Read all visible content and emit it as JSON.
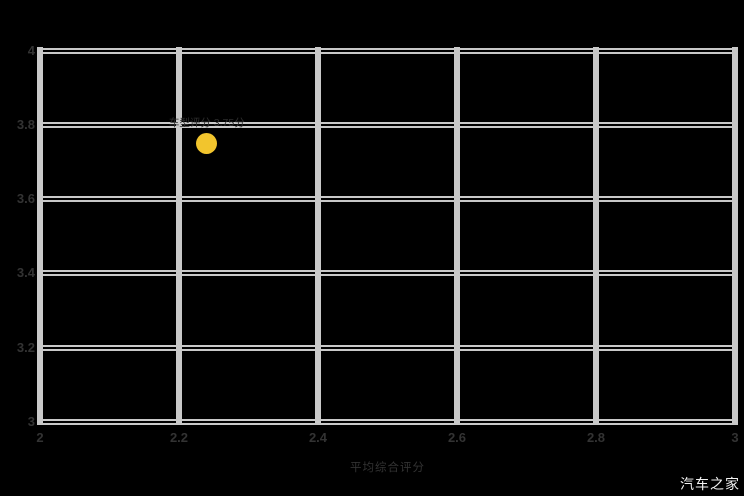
{
  "watermark": "汽车之家",
  "colors": {
    "background": "#000000",
    "grid": "#c9c9c9",
    "tick_text": "#333333",
    "point": "#f2c52d",
    "point_label_text": "#2e2e2e",
    "watermark_text": "#f2f2f2"
  },
  "chart_data": {
    "type": "scatter",
    "title": "",
    "xlabel": "平均综合评分",
    "ylabel": "",
    "xlim": [
      2,
      3
    ],
    "ylim": [
      3,
      4
    ],
    "grid": "on",
    "legend": "none",
    "x_tick_labels": [
      "2",
      "2.2",
      "2.4",
      "2.6",
      "2.8",
      "3"
    ],
    "x_tick_values": [
      2,
      2.2,
      2.4,
      2.6,
      2.8,
      3
    ],
    "y_tick_labels": [
      "4",
      "3.8",
      "3.6",
      "3.4",
      "3.2",
      "3"
    ],
    "y_tick_values": [
      4,
      3.8,
      3.6,
      3.4,
      3.2,
      3
    ],
    "points": [
      {
        "x": 2.24,
        "y": 3.75,
        "label": "车型评分 3.75分",
        "color": "#f2c52d"
      }
    ]
  }
}
